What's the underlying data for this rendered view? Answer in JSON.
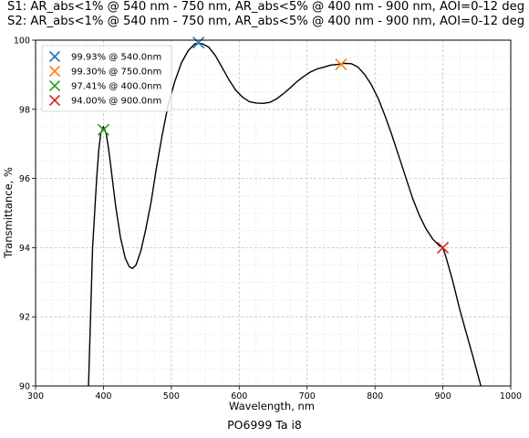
{
  "header": {
    "title_line1": "S1: AR_abs<1% @ 540 nm - 750 nm, AR_abs<5% @ 400 nm - 900 nm, AOI=0-12 deg",
    "title_line2": "S2: AR_abs<1% @ 540 nm - 750 nm, AR_abs<5% @ 400 nm - 900 nm, AOI=0-12 deg"
  },
  "footer": {
    "caption": "PO6999 Ta i8"
  },
  "chart_data": {
    "type": "line",
    "xlabel": "Wavelength, nm",
    "ylabel": "Transmittance, %",
    "xlim": [
      300,
      1000
    ],
    "ylim": [
      90,
      100
    ],
    "x_ticks": [
      300,
      400,
      500,
      600,
      700,
      800,
      900,
      1000
    ],
    "y_ticks": [
      90,
      92,
      94,
      96,
      98,
      100
    ],
    "grid": "major and minor, dashed",
    "legend_position": "top-left",
    "series": [
      {
        "color": "#000000",
        "points": [
          [
            378,
            90.0
          ],
          [
            381,
            92.0
          ],
          [
            384,
            94.0
          ],
          [
            387,
            95.0
          ],
          [
            390,
            96.0
          ],
          [
            393,
            96.8
          ],
          [
            396,
            97.3
          ],
          [
            400,
            97.5
          ],
          [
            404,
            97.3
          ],
          [
            408,
            96.8
          ],
          [
            413,
            96.0
          ],
          [
            418,
            95.2
          ],
          [
            425,
            94.3
          ],
          [
            432,
            93.7
          ],
          [
            438,
            93.45
          ],
          [
            443,
            93.4
          ],
          [
            448,
            93.5
          ],
          [
            455,
            93.9
          ],
          [
            462,
            94.5
          ],
          [
            470,
            95.3
          ],
          [
            478,
            96.3
          ],
          [
            486,
            97.2
          ],
          [
            495,
            98.1
          ],
          [
            505,
            98.8
          ],
          [
            515,
            99.35
          ],
          [
            525,
            99.7
          ],
          [
            535,
            99.9
          ],
          [
            545,
            99.9
          ],
          [
            555,
            99.8
          ],
          [
            565,
            99.55
          ],
          [
            575,
            99.2
          ],
          [
            585,
            98.85
          ],
          [
            595,
            98.55
          ],
          [
            605,
            98.35
          ],
          [
            615,
            98.22
          ],
          [
            625,
            98.18
          ],
          [
            635,
            98.17
          ],
          [
            645,
            98.2
          ],
          [
            655,
            98.3
          ],
          [
            665,
            98.45
          ],
          [
            675,
            98.62
          ],
          [
            685,
            98.8
          ],
          [
            695,
            98.95
          ],
          [
            705,
            99.08
          ],
          [
            715,
            99.17
          ],
          [
            725,
            99.22
          ],
          [
            735,
            99.28
          ],
          [
            745,
            99.3
          ],
          [
            755,
            99.33
          ],
          [
            765,
            99.32
          ],
          [
            775,
            99.22
          ],
          [
            785,
            99.0
          ],
          [
            795,
            98.7
          ],
          [
            805,
            98.3
          ],
          [
            815,
            97.8
          ],
          [
            825,
            97.25
          ],
          [
            835,
            96.65
          ],
          [
            845,
            96.05
          ],
          [
            855,
            95.45
          ],
          [
            865,
            94.95
          ],
          [
            875,
            94.55
          ],
          [
            885,
            94.25
          ],
          [
            895,
            94.05
          ],
          [
            900,
            94.0
          ],
          [
            905,
            93.7
          ],
          [
            915,
            93.0
          ],
          [
            925,
            92.2
          ],
          [
            935,
            91.5
          ],
          [
            945,
            90.8
          ],
          [
            956,
            90.0
          ]
        ]
      }
    ],
    "markers": [
      {
        "label": "99.93% @ 540.0nm",
        "x": 540,
        "y": 99.93,
        "color": "#1f77b4"
      },
      {
        "label": "99.30% @ 750.0nm",
        "x": 750,
        "y": 99.3,
        "color": "#ff7f0e"
      },
      {
        "label": "97.41% @ 400.0nm",
        "x": 400,
        "y": 97.41,
        "color": "#2ca02c"
      },
      {
        "label": "94.00% @ 900.0nm",
        "x": 900,
        "y": 94.0,
        "color": "#d62728"
      }
    ]
  }
}
